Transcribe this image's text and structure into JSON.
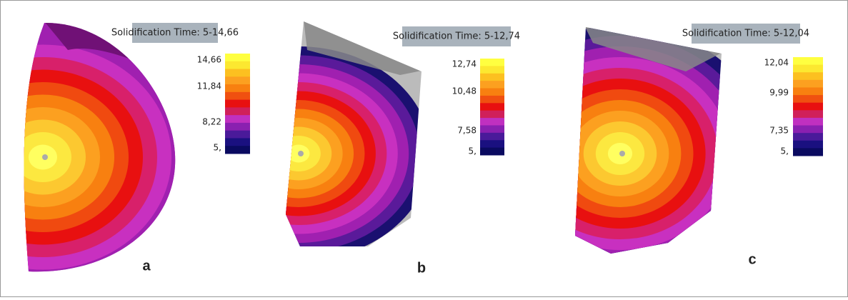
{
  "panels": [
    {
      "title": "Solidification Time: 5-14,66",
      "legend": [
        "14,66",
        "11,84",
        "8,22",
        "5,"
      ],
      "label": "a"
    },
    {
      "title": "Solidification Time: 5-12,74",
      "legend": [
        "12,74",
        "10,48",
        "7,58",
        "5,"
      ],
      "label": "b"
    },
    {
      "title": "Solidification Time: 5-12,04",
      "legend": [
        "12,04",
        "9,99",
        "7,35",
        "5,"
      ],
      "label": "c"
    }
  ]
}
